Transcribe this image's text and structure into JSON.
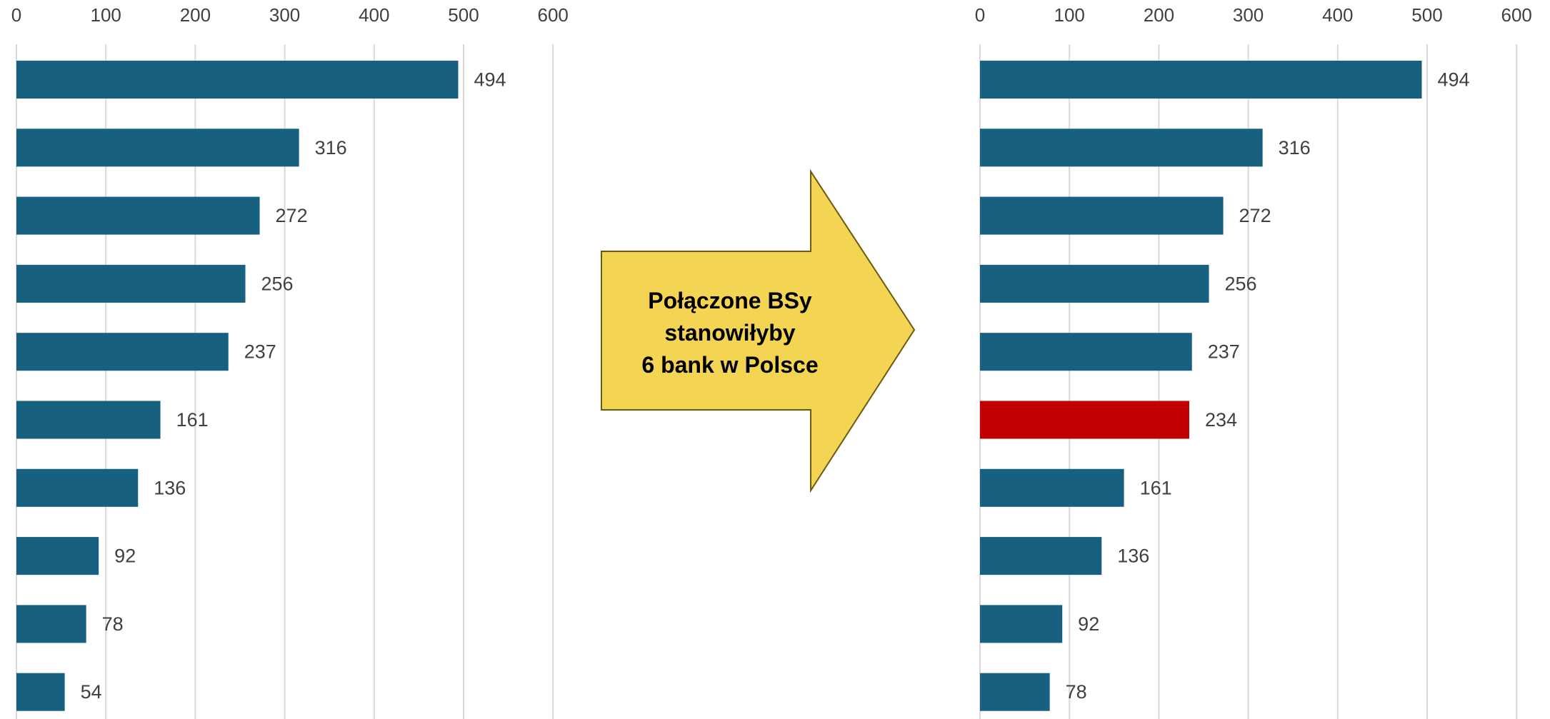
{
  "chart_data": [
    {
      "type": "bar",
      "orientation": "horizontal",
      "title": "",
      "xlabel": "",
      "ylabel": "",
      "xlim": [
        0,
        600
      ],
      "x_ticks": [
        "0",
        "100",
        "200",
        "300",
        "400",
        "500",
        "600"
      ],
      "x_axis_position": "top",
      "grid": true,
      "values": [
        494,
        316,
        272,
        256,
        237,
        161,
        136,
        92,
        78,
        54
      ],
      "highlight_index": null
    },
    {
      "type": "bar",
      "orientation": "horizontal",
      "title": "",
      "xlabel": "",
      "ylabel": "",
      "xlim": [
        0,
        600
      ],
      "x_ticks": [
        "0",
        "100",
        "200",
        "300",
        "400",
        "500",
        "600"
      ],
      "x_axis_position": "top",
      "grid": true,
      "values": [
        494,
        316,
        272,
        256,
        237,
        234,
        161,
        136,
        92,
        78
      ],
      "highlight_index": 5
    }
  ],
  "callout": {
    "lines": [
      "Połączone BSy",
      "stanowiłyby",
      "6 bank w Polsce"
    ]
  },
  "colors": {
    "bar": "#17607f",
    "highlight": "#c00000",
    "grid": "#d9d9d9",
    "arrow_fill": "#f4d553",
    "arrow_stroke": "#6b5a10"
  }
}
